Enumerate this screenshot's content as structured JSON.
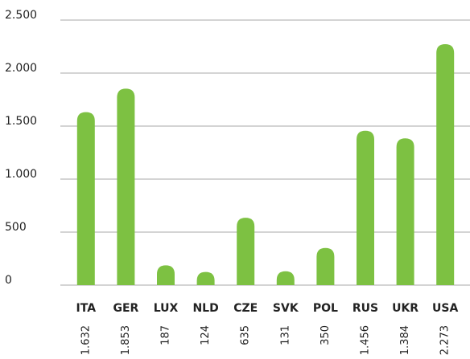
{
  "chart_data": {
    "type": "bar",
    "categories": [
      "ITA",
      "GER",
      "LUX",
      "NLD",
      "CZE",
      "SVK",
      "POL",
      "RUS",
      "UKR",
      "USA"
    ],
    "values": [
      1632,
      1853,
      187,
      124,
      635,
      131,
      350,
      1456,
      1384,
      2273
    ],
    "value_labels": [
      "1.632",
      "1.853",
      "187",
      "124",
      "635",
      "131",
      "350",
      "1.456",
      "1.384",
      "2.273"
    ],
    "color": "#7dc142",
    "ylim": [
      0,
      2500
    ],
    "yticks": [
      0,
      500,
      {
        "value": 1000,
        "label": "1.000"
      },
      {
        "value": 1500,
        "label": "1.500"
      },
      {
        "value": 2000,
        "label": "2.000"
      },
      {
        "value": 2500,
        "label": "2.500"
      }
    ],
    "grid": true
  }
}
